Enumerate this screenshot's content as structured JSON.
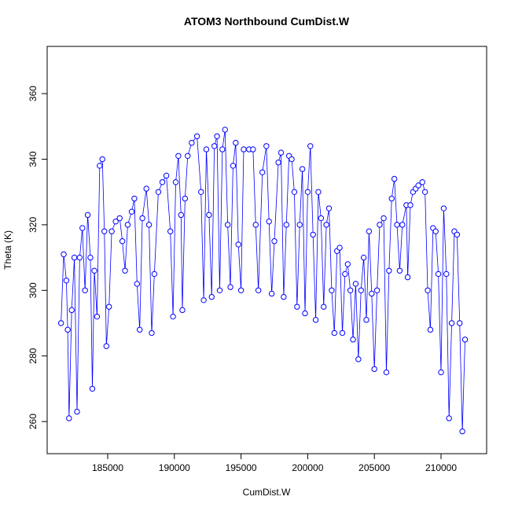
{
  "chart_data": {
    "type": "scatter",
    "title": "ATOM3 Northbound CumDist.W",
    "x_label": "CumDist.W",
    "y_label": "Theta (K)",
    "lines": true,
    "xlim": [
      180460,
      213420
    ],
    "ylim": [
      250.2,
      374.4
    ],
    "xticks": [
      185000,
      190000,
      195000,
      200000,
      205000,
      210000
    ],
    "yticks": [
      260,
      280,
      300,
      320,
      340,
      360
    ],
    "series": [
      {
        "color": "#0000ff",
        "x": [
          181500,
          181700,
          181900,
          182000,
          182100,
          182300,
          182500,
          182700,
          182900,
          183100,
          183300,
          183500,
          183700,
          183850,
          184000,
          184200,
          184400,
          184600,
          184750,
          184900,
          185100,
          185300,
          185600,
          185900,
          186100,
          186300,
          186500,
          186800,
          187000,
          187200,
          187400,
          187600,
          187900,
          188100,
          188300,
          188500,
          188800,
          189100,
          189400,
          189700,
          189900,
          190100,
          190300,
          190500,
          190600,
          190800,
          191000,
          191300,
          191700,
          192000,
          192200,
          192400,
          192600,
          192800,
          193000,
          193200,
          193400,
          193600,
          193800,
          194000,
          194200,
          194400,
          194600,
          194800,
          195000,
          195200,
          195600,
          195900,
          196100,
          196300,
          196600,
          196900,
          197100,
          197300,
          197500,
          197800,
          198000,
          198200,
          198400,
          198600,
          198800,
          199000,
          199200,
          199400,
          199600,
          199800,
          200000,
          200200,
          200400,
          200600,
          200800,
          201000,
          201200,
          201400,
          201600,
          201800,
          202000,
          202200,
          202400,
          202600,
          202800,
          203000,
          203200,
          203400,
          203600,
          203800,
          204000,
          204200,
          204400,
          204600,
          204800,
          205000,
          205200,
          205400,
          205700,
          205900,
          206100,
          206300,
          206500,
          206700,
          206900,
          207100,
          207400,
          207500,
          207700,
          207900,
          208100,
          208300,
          208600,
          208800,
          209000,
          209200,
          209400,
          209600,
          209800,
          210000,
          210200,
          210400,
          210600,
          210800,
          211000,
          211200,
          211400,
          211600,
          211800
        ],
        "y": [
          290,
          311,
          303,
          288,
          261,
          294,
          310,
          263,
          310,
          319,
          300,
          323,
          310,
          270,
          306,
          292,
          338,
          340,
          318,
          283,
          295,
          318,
          321,
          322,
          315,
          306,
          320,
          324,
          328,
          302,
          288,
          322,
          331,
          320,
          287,
          305,
          330,
          333,
          335,
          318,
          292,
          333,
          341,
          323,
          294,
          328,
          341,
          345,
          347,
          330,
          297,
          343,
          323,
          298,
          344,
          347,
          300,
          343,
          349,
          320,
          301,
          338,
          345,
          314,
          300,
          343,
          343,
          343,
          320,
          300,
          336,
          344,
          321,
          299,
          315,
          339,
          342,
          298,
          320,
          341,
          340,
          330,
          295,
          320,
          337,
          293,
          330,
          344,
          317,
          291,
          330,
          322,
          295,
          320,
          325,
          300,
          287,
          312,
          313,
          287,
          305,
          308,
          300,
          285,
          302,
          279,
          300,
          310,
          291,
          318,
          299,
          276,
          300,
          320,
          322,
          275,
          306,
          328,
          334,
          320,
          306,
          320,
          326,
          304,
          326,
          330,
          331,
          332,
          333,
          330,
          300,
          288,
          319,
          318,
          305,
          275,
          325,
          305,
          261,
          290,
          318,
          317,
          290,
          257,
          285
        ]
      }
    ]
  }
}
